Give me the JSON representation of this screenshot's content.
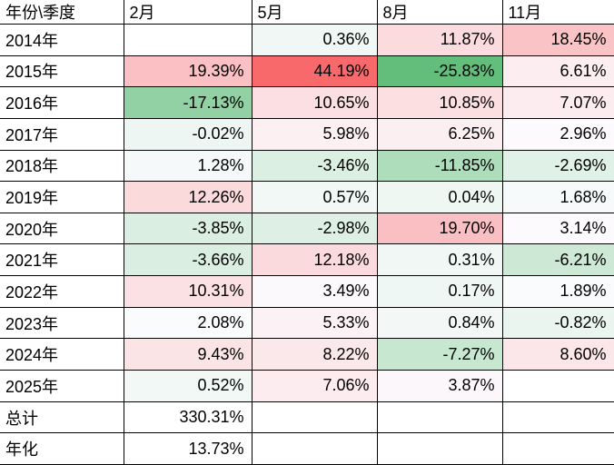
{
  "chart_data": {
    "type": "table",
    "title": "",
    "columns": [
      "年份\\季度",
      "2月",
      "5月",
      "8月",
      "11月"
    ],
    "rows": [
      {
        "label": "2014年",
        "values": [
          "",
          "0.36%",
          "11.87%",
          "18.45%"
        ]
      },
      {
        "label": "2015年",
        "values": [
          "19.39%",
          "44.19%",
          "-25.83%",
          "6.61%"
        ]
      },
      {
        "label": "2016年",
        "values": [
          "-17.13%",
          "10.65%",
          "10.85%",
          "7.07%"
        ]
      },
      {
        "label": "2017年",
        "values": [
          "-0.02%",
          "5.98%",
          "6.25%",
          "2.96%"
        ]
      },
      {
        "label": "2018年",
        "values": [
          "1.28%",
          "-3.46%",
          "-11.85%",
          "-2.69%"
        ]
      },
      {
        "label": "2019年",
        "values": [
          "12.26%",
          "0.57%",
          "0.04%",
          "1.68%"
        ]
      },
      {
        "label": "2020年",
        "values": [
          "-3.85%",
          "-2.98%",
          "19.70%",
          "3.14%"
        ]
      },
      {
        "label": "2021年",
        "values": [
          "-3.66%",
          "12.18%",
          "0.31%",
          "-6.21%"
        ]
      },
      {
        "label": "2022年",
        "values": [
          "10.31%",
          "3.49%",
          "0.17%",
          "1.89%"
        ]
      },
      {
        "label": "2023年",
        "values": [
          "2.08%",
          "5.33%",
          "0.84%",
          "-0.82%"
        ]
      },
      {
        "label": "2024年",
        "values": [
          "9.43%",
          "8.22%",
          "-7.27%",
          "8.60%"
        ]
      },
      {
        "label": "2025年",
        "values": [
          "0.52%",
          "7.06%",
          "3.87%",
          ""
        ]
      }
    ],
    "summary_rows": [
      {
        "label": "总计",
        "values": [
          "330.31%",
          "",
          "",
          ""
        ]
      },
      {
        "label": "年化",
        "values": [
          "13.73%",
          "",
          "",
          ""
        ]
      }
    ],
    "conditional_format": {
      "scope": "year rows only (2014年-2025年)",
      "scale": "3-color: min=green, 50th-percentile=near-white, max=red",
      "min_color": "#63BE7B",
      "mid_color": "#FCFCFF",
      "max_color": "#F8696B"
    },
    "style": {
      "border_color": "#000000",
      "text_color": "#000000",
      "background": "#FFFFFF"
    }
  }
}
